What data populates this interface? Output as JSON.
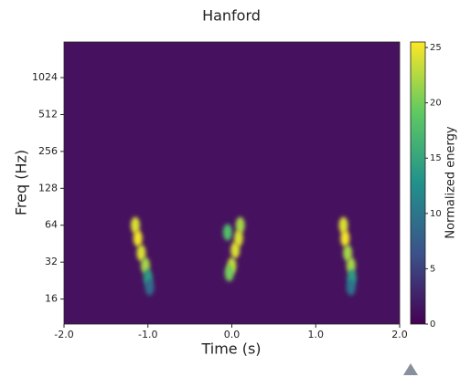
{
  "chart_data": {
    "type": "spectrogram",
    "title": "Hanford",
    "x_label": "Time (s)",
    "y_label": "Freq (Hz)",
    "colorbar_label": "Normalized energy",
    "xlim": [
      -2.0,
      2.0
    ],
    "xticks": [
      {
        "value": -2,
        "label": "-2.0"
      },
      {
        "value": -1,
        "label": "-1.0"
      },
      {
        "value": 0,
        "label": "0.0"
      },
      {
        "value": 1,
        "label": "1.0"
      },
      {
        "value": 2,
        "label": "2.0"
      }
    ],
    "ylim": [
      10,
      2000
    ],
    "y_log": true,
    "yticks": [
      16,
      32,
      64,
      128,
      256,
      512,
      1024
    ],
    "clim": [
      0,
      25.5
    ],
    "cticks": [
      0,
      5,
      10,
      15,
      20,
      25
    ],
    "x": [
      -1.15,
      -1.12,
      -1.08,
      -1.03,
      -1.0,
      -0.98,
      0.1,
      0.08,
      0.04,
      0.0,
      -0.03,
      -0.05,
      1.33,
      1.35,
      1.38,
      1.42,
      1.43,
      1.42
    ],
    "y": [
      64,
      50,
      38,
      30,
      24,
      20,
      64,
      50,
      40,
      30,
      26,
      56,
      64,
      50,
      38,
      30,
      24,
      20
    ],
    "values": [
      24,
      25,
      24,
      22,
      14,
      9,
      22,
      24,
      24,
      23,
      20,
      18,
      24,
      25,
      22,
      22,
      14,
      10
    ]
  }
}
